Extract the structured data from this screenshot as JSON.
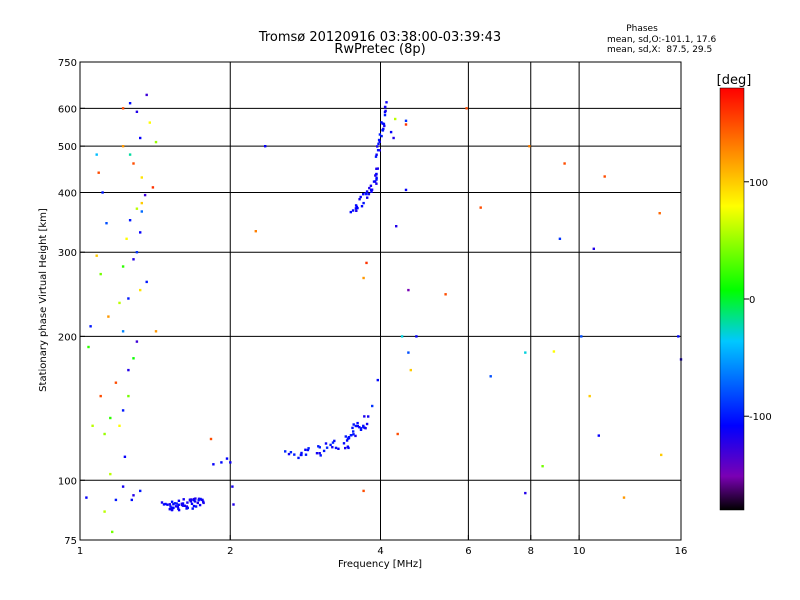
{
  "chart_data": {
    "type": "scatter",
    "title": "Tromsø 20120916 03:38:00-03:39:43",
    "subtitle": "RwPretec (8p)",
    "xlabel": "Frequency [MHz]",
    "ylabel": "Stationary phase Virtual Height [km]",
    "xscale": "log",
    "yscale": "log",
    "xlim": [
      1,
      16
    ],
    "ylim": [
      75,
      750
    ],
    "x_ticks": [
      1,
      2,
      4,
      6,
      8,
      10,
      16
    ],
    "x_ticklabels": [
      "1",
      "2",
      "4",
      "6",
      "8",
      "10",
      "16"
    ],
    "x_gridlines": [
      2,
      4,
      6,
      8,
      10
    ],
    "y_ticks": [
      75,
      100,
      200,
      300,
      400,
      500,
      600,
      750
    ],
    "y_ticklabels": [
      "75",
      "100",
      "200",
      "300",
      "400",
      "500",
      "600",
      "750"
    ],
    "y_gridlines": [
      100,
      200,
      300,
      400,
      500,
      600
    ],
    "grid": true,
    "colorbar": {
      "title": "[deg]",
      "min": -180,
      "max": 180,
      "ticks": [
        100,
        0,
        -100
      ],
      "ticklabels": [
        "100",
        "0",
        "-100"
      ],
      "colormap": [
        "#000000",
        "#7a00b4",
        "#0000ff",
        "#00c8ff",
        "#00ff00",
        "#ffff00",
        "#ff8000",
        "#ff0000"
      ]
    },
    "stats": {
      "title": "Phases",
      "line1": "mean, sd,O:-101.1, 17.6",
      "line2": "mean, sd,X:  87.5, 29.5"
    },
    "clusters": [
      {
        "count": 55,
        "f0": 1.48,
        "f1": 1.76,
        "h0": 88,
        "h1": 90,
        "df": 0.02,
        "dh": 2.2,
        "phase": -110,
        "pd": 10
      },
      {
        "count": 30,
        "f0": 2.6,
        "f1": 3.45,
        "h0": 112,
        "h1": 120,
        "df": 0.06,
        "dh": 3,
        "phase": -105,
        "pd": 12
      },
      {
        "count": 25,
        "f0": 3.4,
        "f1": 3.75,
        "h0": 120,
        "h1": 135,
        "df": 0.05,
        "dh": 4,
        "phase": -108,
        "pd": 10
      },
      {
        "count": 25,
        "f0": 3.5,
        "f1": 3.92,
        "h0": 365,
        "h1": 420,
        "df": 0.04,
        "dh": 10,
        "phase": -110,
        "pd": 10
      },
      {
        "count": 30,
        "f0": 3.9,
        "f1": 4.1,
        "h0": 420,
        "h1": 610,
        "df": 0.03,
        "dh": 14,
        "phase": -108,
        "pd": 12
      }
    ],
    "points": [
      [
        1.03,
        92,
        -110
      ],
      [
        1.18,
        91,
        -100
      ],
      [
        1.22,
        97,
        -115
      ],
      [
        1.27,
        91,
        -105
      ],
      [
        1.32,
        95,
        -100
      ],
      [
        1.28,
        93,
        -120
      ],
      [
        1.12,
        86,
        60
      ],
      [
        1.16,
        78,
        40
      ],
      [
        1.85,
        108,
        -110
      ],
      [
        1.92,
        109,
        -105
      ],
      [
        1.97,
        111,
        -108
      ],
      [
        2.0,
        109,
        -112
      ],
      [
        2.02,
        97,
        -115
      ],
      [
        2.03,
        89,
        -120
      ],
      [
        1.83,
        122,
        150
      ],
      [
        1.12,
        125,
        50
      ],
      [
        1.15,
        135,
        20
      ],
      [
        1.2,
        130,
        80
      ],
      [
        1.22,
        140,
        -100
      ],
      [
        1.25,
        150,
        40
      ],
      [
        1.18,
        160,
        150
      ],
      [
        1.25,
        170,
        -120
      ],
      [
        1.28,
        180,
        10
      ],
      [
        1.3,
        195,
        -130
      ],
      [
        1.22,
        205,
        -60
      ],
      [
        1.14,
        220,
        120
      ],
      [
        1.2,
        235,
        60
      ],
      [
        1.25,
        240,
        -100
      ],
      [
        1.32,
        250,
        90
      ],
      [
        1.36,
        260,
        -100
      ],
      [
        1.22,
        280,
        20
      ],
      [
        1.28,
        290,
        -120
      ],
      [
        1.3,
        300,
        -90
      ],
      [
        1.24,
        320,
        80
      ],
      [
        1.32,
        330,
        -110
      ],
      [
        1.26,
        350,
        -100
      ],
      [
        1.3,
        370,
        60
      ],
      [
        1.33,
        380,
        100
      ],
      [
        1.35,
        395,
        -130
      ],
      [
        1.4,
        410,
        160
      ],
      [
        1.33,
        430,
        90
      ],
      [
        1.28,
        460,
        150
      ],
      [
        1.26,
        480,
        -20
      ],
      [
        1.22,
        500,
        120
      ],
      [
        1.32,
        520,
        -110
      ],
      [
        1.38,
        560,
        80
      ],
      [
        1.3,
        590,
        -120
      ],
      [
        1.22,
        600,
        150
      ],
      [
        1.26,
        615,
        -105
      ],
      [
        1.36,
        640,
        -130
      ],
      [
        1.08,
        480,
        -40
      ],
      [
        1.09,
        440,
        150
      ],
      [
        1.11,
        400,
        -100
      ],
      [
        1.05,
        210,
        -100
      ],
      [
        1.04,
        190,
        20
      ],
      [
        1.1,
        150,
        150
      ],
      [
        1.06,
        130,
        60
      ],
      [
        1.15,
        103,
        60
      ],
      [
        1.23,
        112,
        -110
      ],
      [
        1.42,
        205,
        120
      ],
      [
        1.42,
        510,
        50
      ],
      [
        1.13,
        345,
        -80
      ],
      [
        1.08,
        295,
        100
      ],
      [
        1.1,
        270,
        40
      ],
      [
        1.33,
        365,
        -70
      ],
      [
        2.25,
        332,
        130
      ],
      [
        2.35,
        500,
        -110
      ],
      [
        3.7,
        265,
        120
      ],
      [
        3.75,
        285,
        160
      ],
      [
        4.3,
        340,
        -120
      ],
      [
        4.5,
        405,
        -110
      ],
      [
        4.55,
        250,
        -150
      ],
      [
        4.55,
        185,
        -80
      ],
      [
        4.6,
        170,
        100
      ],
      [
        4.42,
        200,
        -30
      ],
      [
        4.72,
        200,
        -110
      ],
      [
        3.95,
        162,
        -105
      ],
      [
        3.85,
        143,
        -90
      ],
      [
        4.33,
        125,
        150
      ],
      [
        3.7,
        95,
        150
      ],
      [
        4.25,
        520,
        -120
      ],
      [
        4.2,
        535,
        -110
      ],
      [
        4.5,
        555,
        160
      ],
      [
        4.5,
        565,
        -90
      ],
      [
        4.28,
        570,
        60
      ],
      [
        5.95,
        600,
        150
      ],
      [
        5.4,
        245,
        150
      ],
      [
        6.35,
        372,
        150
      ],
      [
        6.65,
        165,
        -80
      ],
      [
        7.8,
        185,
        -30
      ],
      [
        7.8,
        94,
        -120
      ],
      [
        7.95,
        500,
        130
      ],
      [
        8.45,
        107,
        40
      ],
      [
        8.9,
        186,
        80
      ],
      [
        9.15,
        320,
        -90
      ],
      [
        9.35,
        460,
        150
      ],
      [
        10.1,
        200,
        -80
      ],
      [
        10.5,
        150,
        100
      ],
      [
        10.7,
        305,
        -120
      ],
      [
        10.95,
        124,
        -110
      ],
      [
        11.25,
        432,
        150
      ],
      [
        12.3,
        92,
        120
      ],
      [
        14.5,
        362,
        140
      ],
      [
        14.6,
        113,
        100
      ],
      [
        15.8,
        200,
        -105
      ],
      [
        16.0,
        179,
        -120
      ]
    ]
  }
}
